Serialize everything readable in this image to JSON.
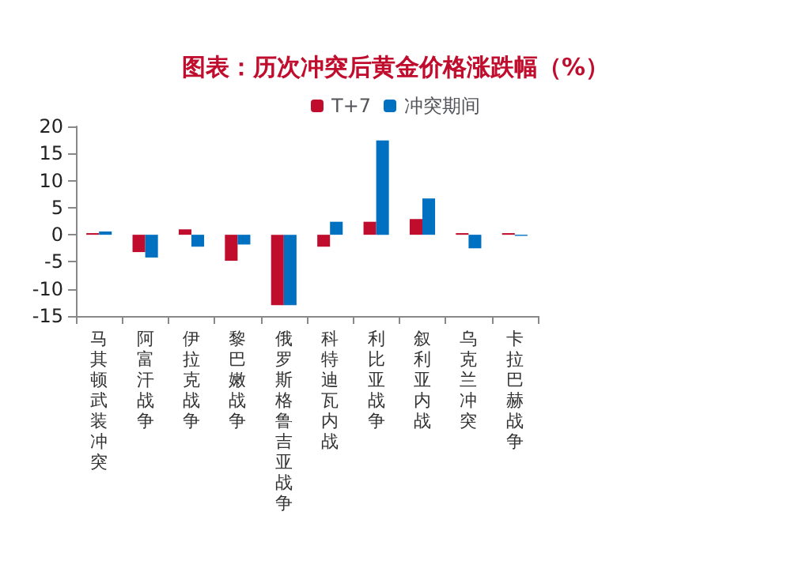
{
  "chart_data": {
    "type": "bar",
    "title": "图表：历次冲突后黄金价格涨跌幅（%）",
    "categories": [
      "马其顿武装冲突",
      "阿富汗战争",
      "伊拉克战争",
      "黎巴嫩战争",
      "俄罗斯格鲁吉亚战争",
      "科特迪瓦内战",
      "利比亚战争",
      "叙利亚内战",
      "乌克兰冲突",
      "卡拉巴赫战争"
    ],
    "series": [
      {
        "name": "T+7",
        "color": "#c00d2e",
        "values": [
          0.3,
          -3.2,
          1.0,
          -4.8,
          -13,
          -2.2,
          2.4,
          2.9,
          0.3,
          0.3
        ]
      },
      {
        "name": "冲突期间",
        "color": "#0070c0",
        "values": [
          0.6,
          -4.2,
          -2.2,
          -1.8,
          -13,
          2.4,
          17.4,
          6.7,
          -2.5,
          -0.2
        ]
      }
    ],
    "ylim": [
      -15,
      20
    ],
    "yticks": [
      -15,
      -10,
      -5,
      0,
      5,
      10,
      15,
      20
    ],
    "grid": false,
    "legend": "top"
  }
}
